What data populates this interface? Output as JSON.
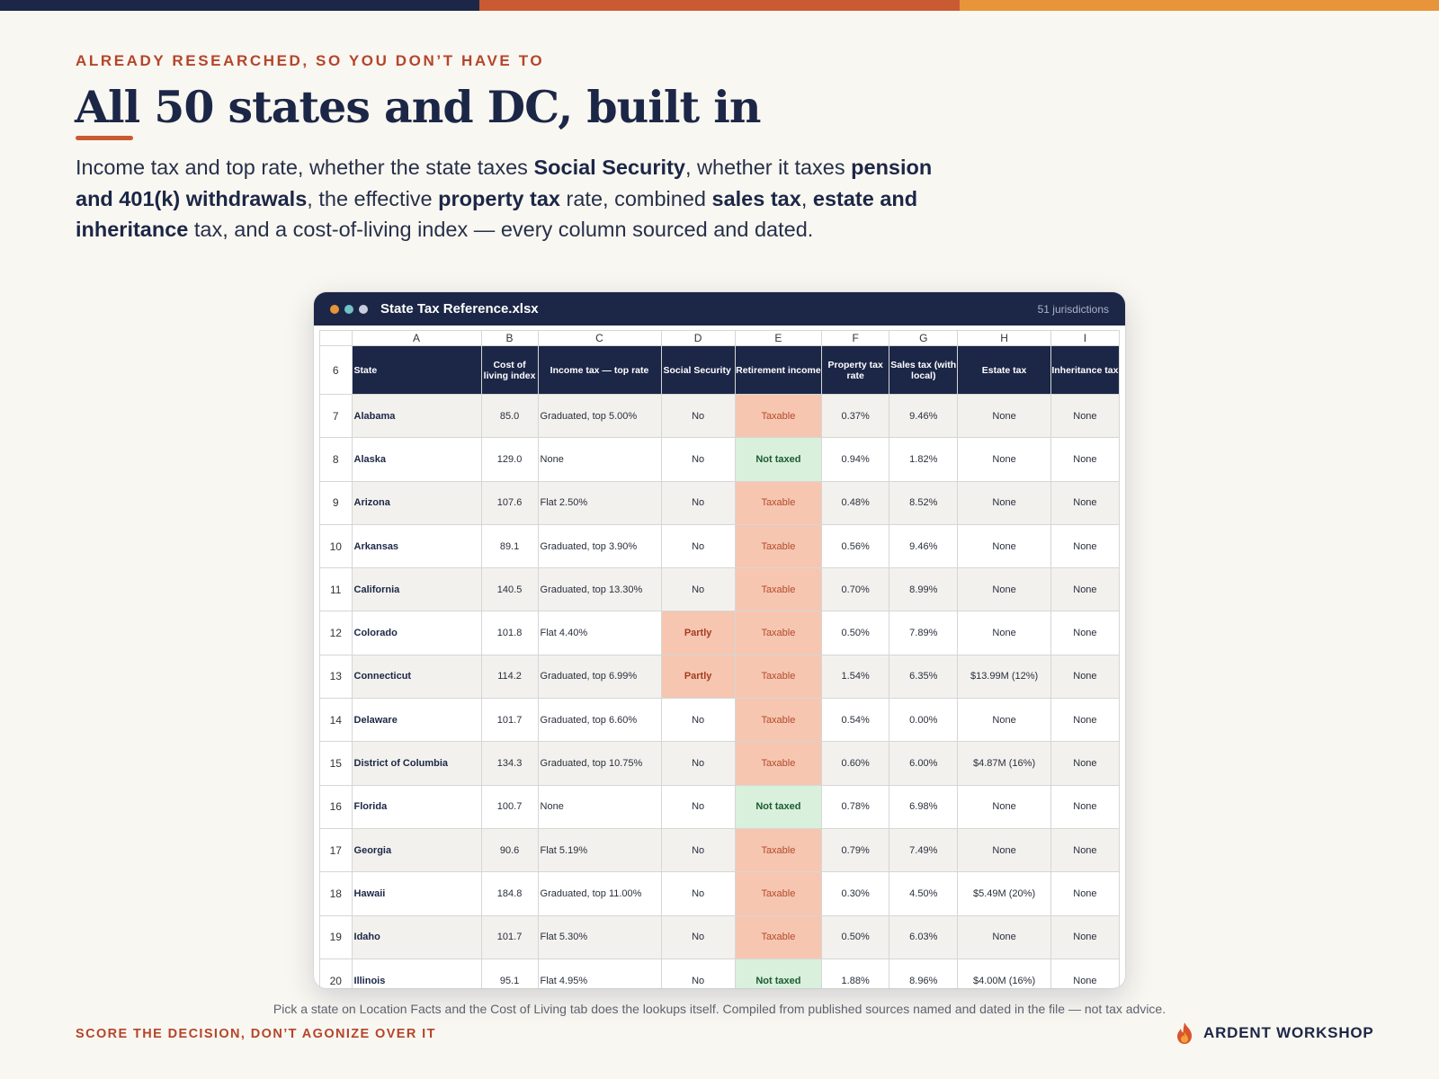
{
  "accent_colors": {
    "navy": "#1c2747",
    "rust": "#c95a32",
    "amber": "#e8943a",
    "eyebrow": "#b4452b"
  },
  "eyebrow": "ALREADY RESEARCHED, SO YOU DON’T HAVE TO",
  "headline": "All 50 states and DC, built in",
  "lede": {
    "t1": "Income tax and top rate, whether the state taxes ",
    "b1": "Social Security",
    "t2": ", whether it taxes ",
    "b2": "pension and 401(k) withdrawals",
    "t3": ", the effective ",
    "b3": "property tax",
    "t4": " rate, combined ",
    "b4": "sales tax",
    "t5": ", ",
    "b5": "estate and inheritance",
    "t6": " tax, and a cost-of-living index — every column sourced and dated."
  },
  "window": {
    "title": "State Tax Reference.xlsx",
    "meta": "51 jurisdictions",
    "dot_colors": [
      "#e8943a",
      "#6fc3c8",
      "#c9cde0"
    ]
  },
  "sheet": {
    "column_letters": [
      "A",
      "B",
      "C",
      "D",
      "E",
      "F",
      "G",
      "H",
      "I"
    ],
    "header_row_number": "6",
    "headers": [
      "State",
      "Cost of living index",
      "Income tax — top rate",
      "Social Security",
      "Retirement income",
      "Property tax rate",
      "Sales tax (with local)",
      "Estate tax",
      "Inheritance tax"
    ],
    "rows": [
      {
        "n": "7",
        "state": "Alabama",
        "col": "85.0",
        "income": "Graduated, top 5.00%",
        "ss": "No",
        "ret": "Taxable",
        "prop": "0.37%",
        "sales": "9.46%",
        "estate": "None",
        "inh": "None"
      },
      {
        "n": "8",
        "state": "Alaska",
        "col": "129.0",
        "income": "None",
        "ss": "No",
        "ret": "Not taxed",
        "prop": "0.94%",
        "sales": "1.82%",
        "estate": "None",
        "inh": "None"
      },
      {
        "n": "9",
        "state": "Arizona",
        "col": "107.6",
        "income": "Flat 2.50%",
        "ss": "No",
        "ret": "Taxable",
        "prop": "0.48%",
        "sales": "8.52%",
        "estate": "None",
        "inh": "None"
      },
      {
        "n": "10",
        "state": "Arkansas",
        "col": "89.1",
        "income": "Graduated, top 3.90%",
        "ss": "No",
        "ret": "Taxable",
        "prop": "0.56%",
        "sales": "9.46%",
        "estate": "None",
        "inh": "None"
      },
      {
        "n": "11",
        "state": "California",
        "col": "140.5",
        "income": "Graduated, top 13.30%",
        "ss": "No",
        "ret": "Taxable",
        "prop": "0.70%",
        "sales": "8.99%",
        "estate": "None",
        "inh": "None"
      },
      {
        "n": "12",
        "state": "Colorado",
        "col": "101.8",
        "income": "Flat 4.40%",
        "ss": "Partly",
        "ret": "Taxable",
        "prop": "0.50%",
        "sales": "7.89%",
        "estate": "None",
        "inh": "None"
      },
      {
        "n": "13",
        "state": "Connecticut",
        "col": "114.2",
        "income": "Graduated, top 6.99%",
        "ss": "Partly",
        "ret": "Taxable",
        "prop": "1.54%",
        "sales": "6.35%",
        "estate": "$13.99M (12%)",
        "inh": "None"
      },
      {
        "n": "14",
        "state": "Delaware",
        "col": "101.7",
        "income": "Graduated, top 6.60%",
        "ss": "No",
        "ret": "Taxable",
        "prop": "0.54%",
        "sales": "0.00%",
        "estate": "None",
        "inh": "None"
      },
      {
        "n": "15",
        "state": "District of Columbia",
        "col": "134.3",
        "income": "Graduated, top 10.75%",
        "ss": "No",
        "ret": "Taxable",
        "prop": "0.60%",
        "sales": "6.00%",
        "estate": "$4.87M (16%)",
        "inh": "None"
      },
      {
        "n": "16",
        "state": "Florida",
        "col": "100.7",
        "income": "None",
        "ss": "No",
        "ret": "Not taxed",
        "prop": "0.78%",
        "sales": "6.98%",
        "estate": "None",
        "inh": "None"
      },
      {
        "n": "17",
        "state": "Georgia",
        "col": "90.6",
        "income": "Flat 5.19%",
        "ss": "No",
        "ret": "Taxable",
        "prop": "0.79%",
        "sales": "7.49%",
        "estate": "None",
        "inh": "None"
      },
      {
        "n": "18",
        "state": "Hawaii",
        "col": "184.8",
        "income": "Graduated, top 11.00%",
        "ss": "No",
        "ret": "Taxable",
        "prop": "0.30%",
        "sales": "4.50%",
        "estate": "$5.49M (20%)",
        "inh": "None"
      },
      {
        "n": "19",
        "state": "Idaho",
        "col": "101.7",
        "income": "Flat 5.30%",
        "ss": "No",
        "ret": "Taxable",
        "prop": "0.50%",
        "sales": "6.03%",
        "estate": "None",
        "inh": "None"
      },
      {
        "n": "20",
        "state": "Illinois",
        "col": "95.1",
        "income": "Flat 4.95%",
        "ss": "No",
        "ret": "Not taxed",
        "prop": "1.88%",
        "sales": "8.96%",
        "estate": "$4.00M (16%)",
        "inh": "None"
      }
    ]
  },
  "footnote": "Pick a state on Location Facts and the Cost of Living tab does the lookups itself. Compiled from published sources named and dated in the file — not tax advice.",
  "tagline": "SCORE THE DECISION, DON’T AGONIZE OVER IT",
  "brand": {
    "name": "ARDENT WORKSHOP",
    "icon": "flame-icon"
  }
}
